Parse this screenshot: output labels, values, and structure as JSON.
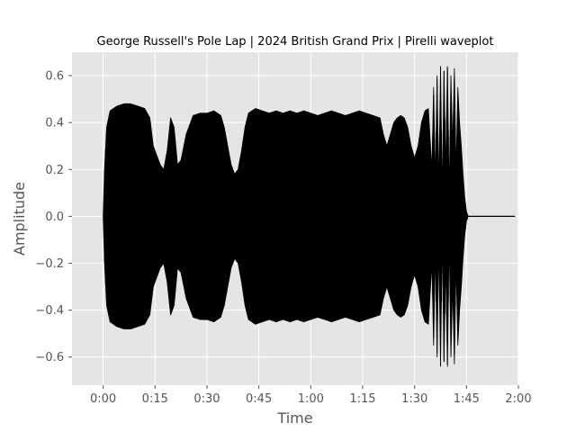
{
  "chart_data": {
    "type": "area",
    "title": "George Russell's Pole Lap | 2024 British Grand Prix | Pirelli waveplot",
    "xlabel": "Time",
    "ylabel": "Amplitude",
    "x_unit": "seconds",
    "xlim": [
      -9,
      120
    ],
    "ylim": [
      -0.72,
      0.7
    ],
    "x_ticks": [
      {
        "value": 0,
        "label": "0:00"
      },
      {
        "value": 15,
        "label": "0:15"
      },
      {
        "value": 30,
        "label": "0:30"
      },
      {
        "value": 45,
        "label": "0:45"
      },
      {
        "value": 60,
        "label": "1:00"
      },
      {
        "value": 75,
        "label": "1:15"
      },
      {
        "value": 90,
        "label": "1:30"
      },
      {
        "value": 105,
        "label": "1:45"
      },
      {
        "value": 120,
        "label": "2:00"
      }
    ],
    "y_ticks": [
      {
        "value": -0.6,
        "label": "−0.6"
      },
      {
        "value": -0.4,
        "label": "−0.4"
      },
      {
        "value": -0.2,
        "label": "−0.2"
      },
      {
        "value": 0.0,
        "label": "0.0"
      },
      {
        "value": 0.2,
        "label": "0.2"
      },
      {
        "value": 0.4,
        "label": "0.4"
      },
      {
        "value": 0.6,
        "label": "0.6"
      }
    ],
    "grid": true,
    "background": "#e5e5e5",
    "grid_color": "#ffffff",
    "series_color": "#000000",
    "series": [
      {
        "envelope": {
          "time": [
            0,
            0.4,
            1,
            2,
            4,
            6,
            8,
            10,
            12,
            13.5,
            14.5,
            15.5,
            16.5,
            17.5,
            18.5,
            19.5,
            20.5,
            21.5,
            22.5,
            24,
            26,
            28,
            30,
            32,
            34,
            35,
            36,
            37,
            38,
            39,
            40,
            41,
            42,
            43,
            44,
            46,
            48,
            50,
            52,
            54,
            56,
            58,
            60,
            62,
            64,
            66,
            68,
            70,
            72,
            74,
            76,
            78,
            80,
            81,
            82,
            83,
            84,
            85,
            86,
            87,
            88,
            89,
            90,
            91,
            92,
            93,
            94,
            95,
            95.5,
            96,
            96.5,
            97,
            97.5,
            98,
            98.5,
            99,
            99.5,
            100,
            100.5,
            101,
            101.5,
            102,
            102.5,
            103,
            103.5,
            104,
            104.5,
            105,
            105.5,
            106,
            110,
            115,
            119
          ],
          "upper": [
            0.0,
            0.2,
            0.38,
            0.45,
            0.47,
            0.48,
            0.48,
            0.47,
            0.46,
            0.42,
            0.3,
            0.26,
            0.22,
            0.2,
            0.28,
            0.42,
            0.38,
            0.22,
            0.24,
            0.35,
            0.43,
            0.44,
            0.44,
            0.45,
            0.43,
            0.38,
            0.3,
            0.22,
            0.18,
            0.2,
            0.28,
            0.38,
            0.44,
            0.45,
            0.46,
            0.45,
            0.44,
            0.45,
            0.44,
            0.45,
            0.44,
            0.45,
            0.44,
            0.43,
            0.44,
            0.45,
            0.44,
            0.43,
            0.44,
            0.45,
            0.44,
            0.43,
            0.42,
            0.35,
            0.3,
            0.35,
            0.4,
            0.42,
            0.43,
            0.42,
            0.38,
            0.3,
            0.25,
            0.3,
            0.4,
            0.45,
            0.46,
            0.2,
            0.55,
            0.15,
            0.6,
            0.12,
            0.64,
            0.1,
            0.62,
            0.2,
            0.64,
            0.1,
            0.6,
            0.3,
            0.63,
            0.2,
            0.55,
            0.4,
            0.3,
            0.18,
            0.08,
            0.02,
            0.0,
            0.0,
            0.0,
            0.0,
            0.0
          ],
          "lower": [
            0.0,
            -0.2,
            -0.38,
            -0.45,
            -0.47,
            -0.48,
            -0.48,
            -0.47,
            -0.46,
            -0.42,
            -0.3,
            -0.26,
            -0.22,
            -0.2,
            -0.28,
            -0.42,
            -0.38,
            -0.22,
            -0.24,
            -0.35,
            -0.43,
            -0.44,
            -0.44,
            -0.45,
            -0.43,
            -0.38,
            -0.3,
            -0.22,
            -0.18,
            -0.2,
            -0.28,
            -0.38,
            -0.44,
            -0.45,
            -0.46,
            -0.45,
            -0.44,
            -0.45,
            -0.44,
            -0.45,
            -0.44,
            -0.45,
            -0.44,
            -0.43,
            -0.44,
            -0.45,
            -0.44,
            -0.43,
            -0.44,
            -0.45,
            -0.44,
            -0.43,
            -0.42,
            -0.35,
            -0.3,
            -0.35,
            -0.4,
            -0.42,
            -0.43,
            -0.42,
            -0.38,
            -0.3,
            -0.25,
            -0.3,
            -0.4,
            -0.45,
            -0.46,
            -0.2,
            -0.55,
            -0.15,
            -0.6,
            -0.12,
            -0.64,
            -0.1,
            -0.62,
            -0.2,
            -0.64,
            -0.1,
            -0.6,
            -0.3,
            -0.63,
            -0.2,
            -0.55,
            -0.4,
            -0.3,
            -0.18,
            -0.08,
            -0.02,
            0.0,
            0.0,
            0.0,
            0.0,
            0.0
          ]
        },
        "trailing_line": {
          "time": [
            105,
            119
          ],
          "value": 0.0
        }
      }
    ]
  }
}
